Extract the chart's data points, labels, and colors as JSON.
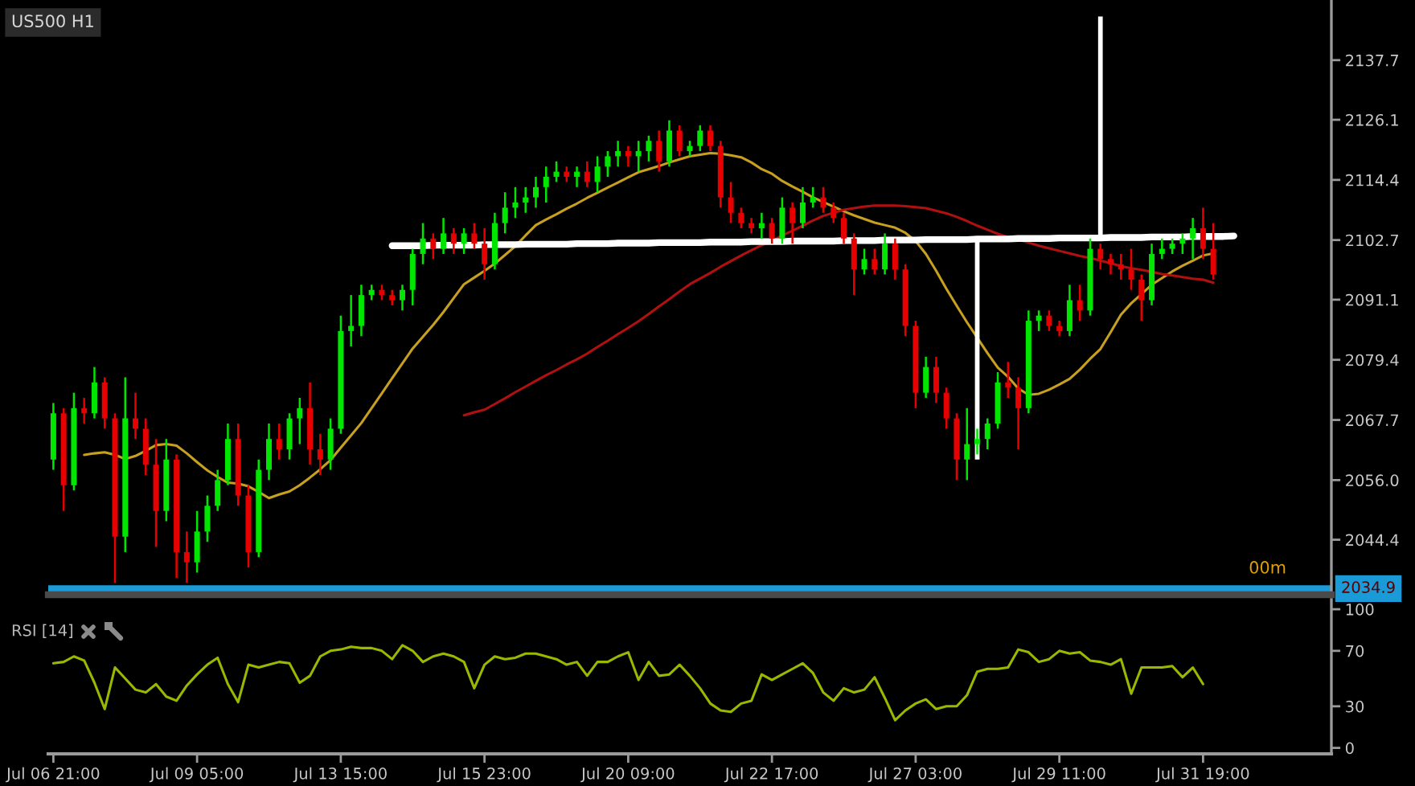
{
  "chart_data": [
    {
      "type": "candlestick",
      "title": "US500 H1",
      "categories": [
        null,
        null,
        null,
        null,
        null,
        null,
        null,
        null,
        null,
        null,
        null,
        null,
        null,
        null,
        null,
        null,
        null,
        null,
        null,
        null,
        null,
        null,
        null,
        null,
        null,
        null,
        null,
        null,
        null,
        null,
        null,
        null,
        null,
        null,
        null,
        null,
        null,
        null,
        null,
        null,
        null,
        null,
        null,
        null,
        null,
        null,
        null,
        null,
        null,
        null,
        null,
        null,
        null,
        null,
        null,
        null,
        null,
        null,
        null,
        null,
        null,
        null,
        null,
        null,
        null,
        null,
        null,
        null,
        null,
        null,
        null,
        null,
        null,
        null,
        null,
        null,
        null,
        null,
        null,
        null,
        null,
        null,
        null,
        null,
        null,
        null,
        null,
        null,
        null,
        null,
        null,
        null,
        null,
        null,
        null,
        null,
        null,
        null,
        null,
        null,
        null,
        null,
        null,
        null,
        null,
        null,
        null,
        null,
        null,
        null,
        null,
        null,
        null,
        null,
        null,
        null,
        null,
        null,
        null,
        null,
        null,
        null,
        null,
        null,
        null
      ],
      "ohlc": [
        [
          2060,
          2071,
          2058,
          2069
        ],
        [
          2069,
          2070,
          2050,
          2055
        ],
        [
          2055,
          2073,
          2054,
          2070
        ],
        [
          2070,
          2072,
          2067,
          2069
        ],
        [
          2069,
          2078,
          2068,
          2075
        ],
        [
          2075,
          2076,
          2066,
          2068
        ],
        [
          2068,
          2069,
          2036,
          2045
        ],
        [
          2045,
          2076,
          2042,
          2068
        ],
        [
          2068,
          2073,
          2064,
          2066
        ],
        [
          2066,
          2068,
          2057,
          2059
        ],
        [
          2059,
          2064,
          2043,
          2050
        ],
        [
          2050,
          2064,
          2048,
          2060
        ],
        [
          2060,
          2061,
          2037,
          2042
        ],
        [
          2042,
          2046,
          2036,
          2040
        ],
        [
          2040,
          2050,
          2038,
          2046
        ],
        [
          2046,
          2053,
          2044,
          2051
        ],
        [
          2051,
          2058,
          2050,
          2056
        ],
        [
          2056,
          2067,
          2055,
          2064
        ],
        [
          2064,
          2067,
          2051,
          2053
        ],
        [
          2053,
          2055,
          2039,
          2042
        ],
        [
          2042,
          2060,
          2041,
          2058
        ],
        [
          2058,
          2067,
          2056,
          2064
        ],
        [
          2064,
          2067,
          2060,
          2062
        ],
        [
          2062,
          2069,
          2060,
          2068
        ],
        [
          2068,
          2072,
          2063,
          2070
        ],
        [
          2070,
          2075,
          2059,
          2062
        ],
        [
          2062,
          2065,
          2057,
          2060
        ],
        [
          2060,
          2068,
          2058,
          2066
        ],
        [
          2066,
          2088,
          2065,
          2085
        ],
        [
          2085,
          2092,
          2082,
          2086
        ],
        [
          2086,
          2094,
          2084,
          2092
        ],
        [
          2092,
          2094,
          2091,
          2093
        ],
        [
          2093,
          2094,
          2091,
          2092
        ],
        [
          2092,
          2093,
          2090,
          2091
        ],
        [
          2091,
          2094,
          2089,
          2093
        ],
        [
          2093,
          2101,
          2090,
          2100
        ],
        [
          2100,
          2106,
          2098,
          2103
        ],
        [
          2103,
          2104,
          2099,
          2101
        ],
        [
          2101,
          2107,
          2100,
          2104
        ],
        [
          2104,
          2105,
          2100,
          2102
        ],
        [
          2102,
          2105,
          2100,
          2104
        ],
        [
          2104,
          2106,
          2101,
          2102
        ],
        [
          2102,
          2105,
          2095,
          2098
        ],
        [
          2098,
          2108,
          2097,
          2106
        ],
        [
          2106,
          2112,
          2104,
          2109
        ],
        [
          2109,
          2113,
          2107,
          2110
        ],
        [
          2110,
          2113,
          2108,
          2111
        ],
        [
          2111,
          2115,
          2109,
          2113
        ],
        [
          2113,
          2117,
          2110,
          2115
        ],
        [
          2115,
          2118,
          2114,
          2116
        ],
        [
          2116,
          2117,
          2114,
          2115
        ],
        [
          2115,
          2117,
          2113,
          2116
        ],
        [
          2116,
          2118,
          2113,
          2114
        ],
        [
          2114,
          2119,
          2112,
          2117
        ],
        [
          2117,
          2120,
          2115,
          2119
        ],
        [
          2119,
          2122,
          2117,
          2120
        ],
        [
          2120,
          2121,
          2117,
          2119
        ],
        [
          2119,
          2122,
          2116,
          2120
        ],
        [
          2120,
          2123,
          2118,
          2122
        ],
        [
          2122,
          2124,
          2116,
          2118
        ],
        [
          2118,
          2126,
          2117,
          2124
        ],
        [
          2124,
          2125,
          2119,
          2120
        ],
        [
          2120,
          2122,
          2119,
          2121
        ],
        [
          2121,
          2125,
          2120,
          2124
        ],
        [
          2124,
          2125,
          2120,
          2121
        ],
        [
          2121,
          2122,
          2109,
          2111
        ],
        [
          2111,
          2114,
          2106,
          2108
        ],
        [
          2108,
          2109,
          2105,
          2106
        ],
        [
          2106,
          2107,
          2104,
          2105
        ],
        [
          2105,
          2108,
          2103,
          2106
        ],
        [
          2106,
          2107,
          2102,
          2103
        ],
        [
          2103,
          2111,
          2102,
          2109
        ],
        [
          2109,
          2110,
          2102,
          2106
        ],
        [
          2106,
          2113,
          2105,
          2110
        ],
        [
          2110,
          2113,
          2109,
          2111
        ],
        [
          2111,
          2113,
          2108,
          2109
        ],
        [
          2109,
          2110,
          2106,
          2107
        ],
        [
          2107,
          2108,
          2102,
          2103
        ],
        [
          2103,
          2104,
          2092,
          2097
        ],
        [
          2097,
          2101,
          2096,
          2099
        ],
        [
          2099,
          2101,
          2096,
          2097
        ],
        [
          2097,
          2104,
          2096,
          2102
        ],
        [
          2102,
          2103,
          2095,
          2097
        ],
        [
          2097,
          2098,
          2084,
          2086
        ],
        [
          2086,
          2087,
          2070,
          2073
        ],
        [
          2073,
          2080,
          2072,
          2078
        ],
        [
          2078,
          2080,
          2071,
          2073
        ],
        [
          2073,
          2074,
          2066,
          2068
        ],
        [
          2068,
          2069,
          2056,
          2060
        ],
        [
          2060,
          2070,
          2056,
          2063
        ],
        [
          2063,
          2066,
          2061,
          2064
        ],
        [
          2064,
          2068,
          2062,
          2067
        ],
        [
          2067,
          2077,
          2066,
          2075
        ],
        [
          2075,
          2079,
          2072,
          2074
        ],
        [
          2074,
          2076,
          2062,
          2070
        ],
        [
          2070,
          2089,
          2069,
          2087
        ],
        [
          2087,
          2089,
          2085,
          2088
        ],
        [
          2088,
          2089,
          2085,
          2086
        ],
        [
          2086,
          2087,
          2084,
          2085
        ],
        [
          2085,
          2094,
          2084,
          2091
        ],
        [
          2091,
          2094,
          2087,
          2089
        ],
        [
          2089,
          2103,
          2088,
          2101
        ],
        [
          2101,
          2102,
          2097,
          2099
        ],
        [
          2099,
          2100,
          2096,
          2098
        ],
        [
          2098,
          2100,
          2095,
          2097
        ],
        [
          2097,
          2101,
          2093,
          2095
        ],
        [
          2095,
          2096,
          2087,
          2091
        ],
        [
          2091,
          2102,
          2090,
          2100
        ],
        [
          2100,
          2103,
          2099,
          2101
        ],
        [
          2101,
          2103,
          2100,
          2102
        ],
        [
          2102,
          2104,
          2100,
          2103
        ],
        [
          2103,
          2107,
          2099,
          2105
        ],
        [
          2105,
          2109,
          2099,
          2101
        ],
        [
          2101,
          2106,
          2095,
          2096
        ],
        null,
        null,
        null,
        null,
        null,
        null,
        null,
        null,
        null,
        null,
        null
      ],
      "colors": [
        "#00e600",
        "#e60000",
        "#00e600",
        "#e60000",
        "#00e600",
        "#e60000",
        "#e60000",
        "#00e600",
        "#e60000",
        "#e60000",
        "#e60000",
        "#00e600",
        "#e60000",
        "#e60000",
        "#00e600",
        "#00e600",
        "#00e600",
        "#00e600",
        "#e60000",
        "#e60000",
        "#00e600",
        "#00e600",
        "#e60000",
        "#00e600",
        "#00e600",
        "#e60000",
        "#e60000",
        "#00e600",
        "#00e600",
        "#00e600",
        "#00e600",
        "#00e600",
        "#e60000",
        "#e60000",
        "#00e600",
        "#00e600",
        "#00e600",
        "#e60000",
        "#00e600",
        "#e60000",
        "#00e600",
        "#e60000",
        "#e60000",
        "#00e600",
        "#00e600",
        "#00e600",
        "#00e600",
        "#00e600",
        "#00e600",
        "#00e600",
        "#e60000",
        "#00e600",
        "#e60000",
        "#00e600",
        "#00e600",
        "#00e600",
        "#e60000",
        "#00e600",
        "#00e600",
        "#e60000",
        "#00e600",
        "#e60000",
        "#00e600",
        "#00e600",
        "#e60000",
        "#e60000",
        "#e60000",
        "#e60000",
        "#e60000",
        "#00e600",
        "#e60000",
        "#00e600",
        "#e60000",
        "#00e600",
        "#00e600",
        "#e60000",
        "#e60000",
        "#e60000",
        "#e60000",
        "#00e600",
        "#e60000",
        "#00e600",
        "#e60000",
        "#e60000",
        "#e60000",
        "#00e600",
        "#e60000",
        "#e60000",
        "#e60000",
        "#00e600",
        "#00e600",
        "#00e600",
        "#00e600",
        "#e60000",
        "#e60000",
        "#00e600",
        "#00e600",
        "#e60000",
        "#e60000",
        "#00e600",
        "#e60000",
        "#00e600",
        "#e60000",
        "#e60000",
        "#e60000",
        "#e60000",
        "#e60000",
        "#00e600",
        "#00e600",
        "#00e600",
        "#00e600",
        "#00e600",
        "#e60000",
        "#e60000",
        null,
        null,
        null,
        null,
        null,
        null,
        null,
        null,
        null,
        null,
        null
      ],
      "series": [
        {
          "type": "line",
          "color": "#c8a020",
          "values": [
            null,
            null,
            null,
            2060.9,
            2061.2,
            2061.4,
            2060.9,
            2060.1,
            2060.7,
            2061.7,
            2062.8,
            2063.0,
            2062.7,
            2061.2,
            2059.5,
            2057.9,
            2056.6,
            2055.5,
            2055.3,
            2054.8,
            2053.7,
            2052.5,
            2053.2,
            2053.8,
            2055.0,
            2056.5,
            2058.1,
            2059.9,
            2062.3,
            2064.7,
            2067.1,
            2070.0,
            2072.9,
            2075.8,
            2078.7,
            2081.6,
            2083.9,
            2086.2,
            2088.7,
            2091.4,
            2094.1,
            2095.4,
            2096.7,
            2098.1,
            2099.8,
            2101.5,
            2103.6,
            2105.6,
            2106.7,
            2107.7,
            2108.8,
            2109.8,
            2110.9,
            2111.9,
            2112.9,
            2113.9,
            2114.9,
            2115.9,
            2116.5,
            2117.1,
            2117.8,
            2118.4,
            2119.0,
            2119.3,
            2119.6,
            2119.5,
            2119.2,
            2118.8,
            2117.8,
            2116.5,
            2115.6,
            2114.2,
            2113.1,
            2112.1,
            2111.0,
            2110.1,
            2109.2,
            2108.3,
            2107.5,
            2106.8,
            2106.1,
            2105.6,
            2105.1,
            2104.1,
            2102.5,
            2100.0,
            2096.7,
            2093.2,
            2089.9,
            2086.7,
            2083.7,
            2080.7,
            2077.9,
            2076.1,
            2073.8,
            2072.6,
            2072.8,
            2073.6,
            2074.6,
            2075.7,
            2077.5,
            2079.6,
            2081.5,
            2084.8,
            2088.2,
            2090.4,
            2092.2,
            2094.0,
            2095.3,
            2096.6,
            2097.7,
            2098.7,
            2099.7,
            2100.1,
            null,
            null,
            null,
            null,
            null,
            null,
            null,
            null,
            null,
            null,
            null
          ]
        },
        {
          "type": "line",
          "color": "#b01010",
          "values": [
            null,
            null,
            null,
            null,
            null,
            null,
            null,
            null,
            null,
            null,
            null,
            null,
            null,
            null,
            null,
            null,
            null,
            null,
            null,
            null,
            null,
            null,
            null,
            null,
            null,
            null,
            null,
            null,
            null,
            null,
            null,
            null,
            null,
            null,
            null,
            null,
            null,
            null,
            null,
            null,
            2068.6,
            2069.2,
            2069.7,
            2070.8,
            2071.9,
            2073.1,
            2074.2,
            2075.3,
            2076.4,
            2077.4,
            2078.5,
            2079.5,
            2080.6,
            2081.9,
            2083.1,
            2084.4,
            2085.6,
            2086.9,
            2088.3,
            2089.8,
            2091.2,
            2092.7,
            2094.1,
            2095.2,
            2096.3,
            2097.5,
            2098.6,
            2099.7,
            2100.7,
            2101.7,
            2102.5,
            2103.6,
            2104.5,
            2105.5,
            2106.5,
            2107.4,
            2108.0,
            2108.6,
            2108.9,
            2109.2,
            2109.4,
            2109.4,
            2109.4,
            2109.3,
            2109.1,
            2108.9,
            2108.4,
            2107.9,
            2107.2,
            2106.4,
            2105.5,
            2104.7,
            2103.9,
            2103.3,
            2102.8,
            2102.2,
            2101.6,
            2101.1,
            2100.6,
            2100.1,
            2099.6,
            2099.2,
            2098.7,
            2098.2,
            2097.6,
            2097.2,
            2096.9,
            2096.5,
            2096.1,
            2095.8,
            2095.5,
            2095.2,
            2095.0,
            2094.4,
            null,
            null,
            null,
            null,
            null,
            null,
            null,
            null,
            null,
            null,
            null
          ]
        },
        {
          "type": "line",
          "color": "#ffffff",
          "values": [
            null,
            null,
            null,
            null,
            null,
            null,
            null,
            null,
            null,
            null,
            null,
            null,
            null,
            null,
            null,
            null,
            null,
            null,
            null,
            null,
            null,
            null,
            null,
            null,
            null,
            null,
            null,
            null,
            null,
            null,
            null,
            null,
            null,
            2101.6,
            2101.6,
            2101.6,
            2101.6,
            2101.7,
            2101.7,
            2101.7,
            2101.7,
            2101.7,
            2101.8,
            2101.8,
            2101.8,
            2101.8,
            2101.9,
            2101.9,
            2101.9,
            2101.9,
            2101.9,
            2102.0,
            2102.0,
            2102.0,
            2102.0,
            2102.1,
            2102.1,
            2102.1,
            2102.1,
            2102.2,
            2102.2,
            2102.2,
            2102.2,
            2102.2,
            2102.3,
            2102.3,
            2102.3,
            2102.3,
            2102.4,
            2102.4,
            2102.4,
            2102.4,
            2102.5,
            2102.5,
            2102.5,
            2102.5,
            2102.5,
            2102.6,
            2102.6,
            2102.6,
            2102.6,
            2102.7,
            2102.7,
            2102.7,
            2102.7,
            2102.8,
            2102.8,
            2102.8,
            2102.8,
            2102.8,
            2102.9,
            2102.9,
            2102.9,
            2102.9,
            2103.0,
            2103.0,
            2103.0,
            2103.0,
            2103.1,
            2103.1,
            2103.1,
            2103.1,
            2103.1,
            2103.2,
            2103.2,
            2103.2,
            2103.2,
            2103.3,
            2103.3,
            2103.3,
            2103.3,
            2103.4,
            2103.4,
            2103.4,
            2103.4,
            2103.5,
            null,
            null,
            null,
            null,
            null,
            null,
            null,
            null,
            null
          ]
        },
        {
          "type": "bar",
          "color": "#ffffff",
          "values": [
            null,
            null,
            null,
            null,
            null,
            null,
            null,
            null,
            null,
            null,
            null,
            null,
            null,
            null,
            null,
            null,
            null,
            null,
            null,
            null,
            null,
            null,
            null,
            null,
            null,
            null,
            null,
            null,
            null,
            null,
            null,
            null,
            null,
            null,
            null,
            null,
            null,
            null,
            null,
            null,
            null,
            null,
            null,
            null,
            null,
            null,
            null,
            null,
            null,
            null,
            null,
            null,
            null,
            null,
            null,
            null,
            null,
            null,
            null,
            null,
            null,
            null,
            null,
            null,
            null,
            null,
            null,
            null,
            null,
            null,
            null,
            null,
            null,
            null,
            null,
            null,
            null,
            null,
            null,
            null,
            null,
            null,
            null,
            null,
            null,
            null,
            null,
            null,
            null,
            null,
            42.9,
            null,
            null,
            null,
            null,
            null,
            null,
            null,
            null,
            null,
            null,
            null,
            43.1,
            null,
            null,
            null,
            null,
            null,
            null,
            null,
            null,
            null,
            null,
            null,
            null,
            null,
            null,
            null,
            null,
            null,
            null,
            null,
            null,
            null,
            null
          ],
          "base": [
            null,
            null,
            null,
            null,
            null,
            null,
            null,
            null,
            null,
            null,
            null,
            null,
            null,
            null,
            null,
            null,
            null,
            null,
            null,
            null,
            null,
            null,
            null,
            null,
            null,
            null,
            null,
            null,
            null,
            null,
            null,
            null,
            null,
            null,
            null,
            null,
            null,
            null,
            null,
            null,
            null,
            null,
            null,
            null,
            null,
            null,
            null,
            null,
            null,
            null,
            null,
            null,
            null,
            null,
            null,
            null,
            null,
            null,
            null,
            null,
            null,
            null,
            null,
            null,
            null,
            null,
            null,
            null,
            null,
            null,
            null,
            null,
            null,
            null,
            null,
            null,
            null,
            null,
            null,
            null,
            null,
            null,
            null,
            null,
            null,
            null,
            null,
            null,
            null,
            null,
            2060.0,
            null,
            null,
            null,
            null,
            null,
            null,
            null,
            null,
            null,
            null,
            null,
            2103.1,
            null,
            null,
            null,
            null,
            null,
            null,
            null,
            null,
            null,
            null,
            null,
            null,
            null,
            null,
            null,
            null,
            null,
            null,
            null,
            null,
            null,
            null
          ]
        }
      ],
      "ylim": [
        2033.7,
        2149.4
      ],
      "yticks": [
        2044.4,
        {
          "value": 2056,
          "label": "2056.0"
        },
        2067.7,
        2079.4,
        2091.1,
        2102.7,
        2114.4,
        2126.1,
        2137.7
      ],
      "tick_labels": "y",
      "ref_lines": [
        {
          "axis": "y",
          "value": 2034.9,
          "label": "2034.9",
          "color": "#1a9ad6"
        }
      ],
      "annotations": [
        "00m"
      ]
    },
    {
      "type": "line",
      "title": "RSI [14]",
      "categories": [
        "Jul 06 21:00",
        null,
        null,
        null,
        null,
        null,
        null,
        null,
        null,
        null,
        null,
        null,
        null,
        null,
        "Jul 09 05:00",
        null,
        null,
        null,
        null,
        null,
        null,
        null,
        null,
        null,
        null,
        null,
        null,
        null,
        "Jul 13 15:00",
        null,
        null,
        null,
        null,
        null,
        null,
        null,
        null,
        null,
        null,
        null,
        null,
        null,
        "Jul 15 23:00",
        null,
        null,
        null,
        null,
        null,
        null,
        null,
        null,
        null,
        null,
        null,
        null,
        null,
        "Jul 20 09:00",
        null,
        null,
        null,
        null,
        null,
        null,
        null,
        null,
        null,
        null,
        null,
        null,
        null,
        "Jul 22 17:00",
        null,
        null,
        null,
        null,
        null,
        null,
        null,
        null,
        null,
        null,
        null,
        null,
        null,
        "Jul 27 03:00",
        null,
        null,
        null,
        null,
        null,
        null,
        null,
        null,
        null,
        null,
        null,
        null,
        null,
        "Jul 29 11:00",
        null,
        null,
        null,
        null,
        null,
        null,
        null,
        null,
        null,
        null,
        null,
        null,
        null,
        "Jul 31 19:00",
        null,
        null,
        null,
        null,
        null,
        null,
        null,
        null,
        null,
        null,
        null,
        null
      ],
      "series": [
        {
          "color": "#9ab800",
          "values": [
            61,
            62,
            66,
            63,
            47,
            28,
            58,
            50,
            42,
            40,
            46,
            37,
            34,
            45,
            53,
            60,
            65,
            46,
            33,
            60,
            58,
            60,
            62,
            61,
            47,
            52,
            66,
            70,
            71,
            73,
            72,
            72,
            70,
            64,
            74,
            70,
            62,
            66,
            68,
            66,
            62,
            43,
            60,
            66,
            64,
            65,
            68,
            68,
            66,
            64,
            60,
            62,
            52,
            62,
            62,
            66,
            69,
            49,
            62,
            52,
            53,
            60,
            52,
            43,
            32,
            27,
            26,
            32,
            34,
            53,
            49,
            53,
            57,
            61,
            54,
            40,
            34,
            43,
            40,
            42,
            51,
            36,
            20,
            27,
            32,
            35,
            28,
            30,
            30,
            38,
            55,
            57,
            57,
            58,
            71,
            69,
            62,
            64,
            70,
            68,
            69,
            63,
            62,
            60,
            64,
            39,
            58,
            58,
            58,
            59,
            51,
            58,
            46,
            null,
            null,
            null,
            null,
            null,
            null,
            null,
            null,
            null,
            null,
            null,
            null
          ]
        }
      ],
      "ylim": [
        -4.3,
        107
      ],
      "yticks": [
        0,
        30,
        70,
        100
      ]
    }
  ]
}
